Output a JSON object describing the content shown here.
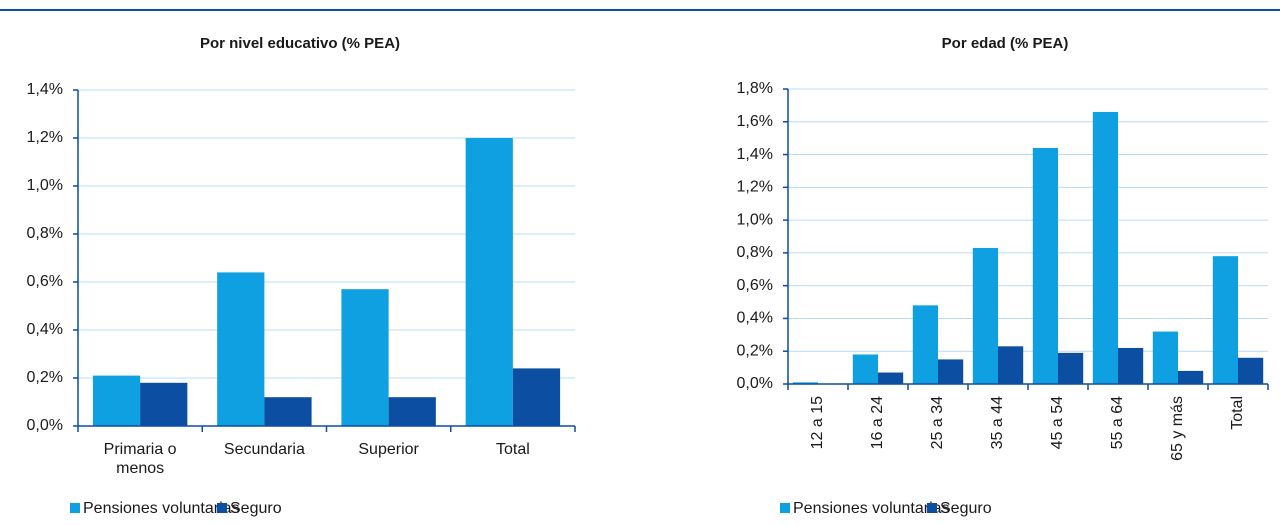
{
  "chart_data": [
    {
      "type": "bar",
      "title": "Por nivel educativo (% PEA)",
      "categories": [
        "Primaria o menos",
        "Secundaria",
        "Superior",
        "Total"
      ],
      "series": [
        {
          "name": "Pensiones voluntarias",
          "color": "#0ea0e0",
          "values": [
            0.21,
            0.64,
            0.57,
            1.2
          ]
        },
        {
          "name": "Seguro",
          "color": "#0b4ea2",
          "values": [
            0.18,
            0.12,
            0.12,
            0.24
          ]
        }
      ],
      "ylim": [
        0,
        1.4
      ],
      "yticks": [
        {
          "value": 0,
          "label": "0,0%"
        },
        {
          "value": 0.2,
          "label": "0,2%"
        },
        {
          "value": 0.4,
          "label": "0,4%"
        },
        {
          "value": 0.6,
          "label": "0,6%"
        },
        {
          "value": 0.8,
          "label": "0,8%"
        },
        {
          "value": 1.0,
          "label": "1,0%"
        },
        {
          "value": 1.2,
          "label": "1,2%"
        },
        {
          "value": 1.4,
          "label": "1,4%"
        }
      ],
      "grid": true,
      "legend": "bottom"
    },
    {
      "type": "bar",
      "title": "Por edad (% PEA)",
      "categories": [
        "12 a 15",
        "16 a 24",
        "25 a 34",
        "35 a 44",
        "45 a 54",
        "55 a 64",
        "65 y más",
        "Total"
      ],
      "series": [
        {
          "name": "Pensiones voluntarias",
          "color": "#0ea0e0",
          "values": [
            0.01,
            0.18,
            0.48,
            0.83,
            1.44,
            1.66,
            0.32,
            0.78
          ]
        },
        {
          "name": "Seguro",
          "color": "#0b4ea2",
          "values": [
            0.0,
            0.07,
            0.15,
            0.23,
            0.19,
            0.22,
            0.08,
            0.16
          ]
        }
      ],
      "ylim": [
        0,
        1.8
      ],
      "yticks": [
        {
          "value": 0,
          "label": "0,0%"
        },
        {
          "value": 0.2,
          "label": "0,2%"
        },
        {
          "value": 0.4,
          "label": "0,4%"
        },
        {
          "value": 0.6,
          "label": "0,6%"
        },
        {
          "value": 0.8,
          "label": "0,8%"
        },
        {
          "value": 1.0,
          "label": "1,0%"
        },
        {
          "value": 1.2,
          "label": "1,2%"
        },
        {
          "value": 1.4,
          "label": "1,4%"
        },
        {
          "value": 1.6,
          "label": "1,6%"
        },
        {
          "value": 1.8,
          "label": "1,8%"
        }
      ],
      "grid": true,
      "legend": "bottom"
    }
  ]
}
